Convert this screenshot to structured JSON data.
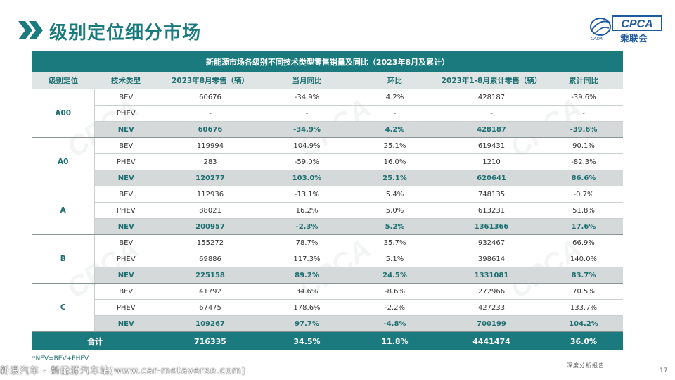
{
  "header": {
    "title": "级别定位细分市场",
    "logo_text": "CPCA",
    "logo_cn": "乘联会",
    "logo_small": "CADA"
  },
  "table": {
    "caption": "新能源市场各级别不同技术类型零售销量及同比（2023年8月及累计）",
    "columns": [
      "级别定位",
      "技术类型",
      "2023年8月零售（辆）",
      "当月同比",
      "环比",
      "2023年1-8月累计零售（辆）",
      "累计同比"
    ],
    "groups": [
      {
        "name": "A00",
        "rows": [
          {
            "type": "BEV",
            "aug": "60676",
            "yoy": "-34.9%",
            "mom": "4.2%",
            "cum": "428187",
            "cum_yoy": "-39.6%"
          },
          {
            "type": "PHEV",
            "aug": "-",
            "yoy": "-",
            "mom": "-",
            "cum": "-",
            "cum_yoy": "-"
          },
          {
            "type": "NEV",
            "aug": "60676",
            "yoy": "-34.9%",
            "mom": "4.2%",
            "cum": "428187",
            "cum_yoy": "-39.6%"
          }
        ]
      },
      {
        "name": "A0",
        "rows": [
          {
            "type": "BEV",
            "aug": "119994",
            "yoy": "104.9%",
            "mom": "25.1%",
            "cum": "619431",
            "cum_yoy": "90.1%"
          },
          {
            "type": "PHEV",
            "aug": "283",
            "yoy": "-59.0%",
            "mom": "16.0%",
            "cum": "1210",
            "cum_yoy": "-82.3%"
          },
          {
            "type": "NEV",
            "aug": "120277",
            "yoy": "103.0%",
            "mom": "25.1%",
            "cum": "620641",
            "cum_yoy": "86.6%"
          }
        ]
      },
      {
        "name": "A",
        "rows": [
          {
            "type": "BEV",
            "aug": "112936",
            "yoy": "-13.1%",
            "mom": "5.4%",
            "cum": "748135",
            "cum_yoy": "-0.7%"
          },
          {
            "type": "PHEV",
            "aug": "88021",
            "yoy": "16.2%",
            "mom": "5.0%",
            "cum": "613231",
            "cum_yoy": "51.8%"
          },
          {
            "type": "NEV",
            "aug": "200957",
            "yoy": "-2.3%",
            "mom": "5.2%",
            "cum": "1361366",
            "cum_yoy": "17.6%"
          }
        ]
      },
      {
        "name": "B",
        "rows": [
          {
            "type": "BEV",
            "aug": "155272",
            "yoy": "78.7%",
            "mom": "35.7%",
            "cum": "932467",
            "cum_yoy": "66.9%"
          },
          {
            "type": "PHEV",
            "aug": "69886",
            "yoy": "117.3%",
            "mom": "5.1%",
            "cum": "398614",
            "cum_yoy": "140.0%"
          },
          {
            "type": "NEV",
            "aug": "225158",
            "yoy": "89.2%",
            "mom": "24.5%",
            "cum": "1331081",
            "cum_yoy": "83.7%"
          }
        ]
      },
      {
        "name": "C",
        "rows": [
          {
            "type": "BEV",
            "aug": "41792",
            "yoy": "34.6%",
            "mom": "-8.6%",
            "cum": "272966",
            "cum_yoy": "70.5%"
          },
          {
            "type": "PHEV",
            "aug": "67475",
            "yoy": "178.6%",
            "mom": "-2.2%",
            "cum": "427233",
            "cum_yoy": "133.7%"
          },
          {
            "type": "NEV",
            "aug": "109267",
            "yoy": "97.7%",
            "mom": "-4.8%",
            "cum": "700199",
            "cum_yoy": "104.2%"
          }
        ]
      }
    ],
    "total": {
      "label": "合计",
      "aug": "716335",
      "yoy": "34.5%",
      "mom": "11.8%",
      "cum": "4441474",
      "cum_yoy": "36.0%"
    }
  },
  "footnote": "*NEV=BEV+PHEV",
  "watermark_text": "新浪汽车 - 新能源汽车站(www.car-metaverse.com)",
  "bottom_brand": "深度分析报告",
  "page_number": "17",
  "colors": {
    "teal": "#1a7a7d",
    "nev_bg": "#d6d9d9",
    "logo_blue": "#1f5a9e"
  }
}
